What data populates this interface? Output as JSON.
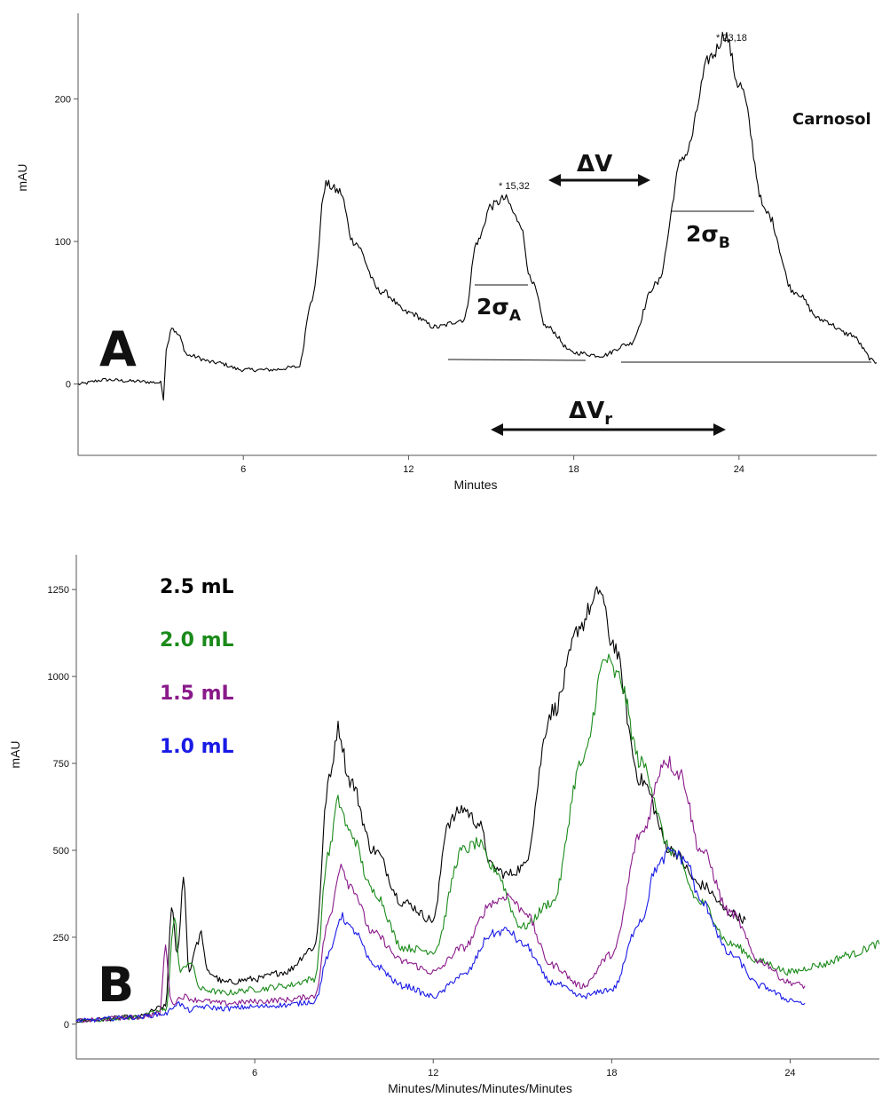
{
  "chart_data": [
    {
      "type": "line",
      "panel_label": "A",
      "xlabel": "Minutes",
      "ylabel": "mAU",
      "xlim": [
        0,
        29
      ],
      "ylim": [
        -50,
        260
      ],
      "xticks": [
        "6",
        "12",
        "18",
        "24"
      ],
      "yticks": [
        "0",
        "100",
        "200"
      ],
      "series": [
        {
          "color": "#000000",
          "x": [
            0,
            1,
            2,
            3,
            3.1,
            3.2,
            3.4,
            3.6,
            4,
            5,
            6,
            7,
            8,
            8.5,
            9,
            9.5,
            10,
            11,
            12,
            13,
            14,
            14.5,
            15,
            15.5,
            16,
            16.5,
            17,
            18,
            19,
            20,
            21,
            22,
            23,
            23.5,
            24,
            25,
            26,
            27,
            28,
            29
          ],
          "y": [
            0,
            3,
            2,
            1,
            -10,
            25,
            40,
            35,
            20,
            15,
            10,
            10,
            12,
            60,
            140,
            135,
            100,
            65,
            50,
            40,
            45,
            100,
            125,
            130,
            115,
            70,
            40,
            22,
            20,
            28,
            70,
            160,
            230,
            245,
            210,
            120,
            65,
            45,
            35,
            15
          ]
        }
      ],
      "annotations": [
        {
          "text": "* 15,32",
          "x": 15.32,
          "y": 150
        },
        {
          "text": "* 23,18",
          "x": 23.18,
          "y": 270
        },
        {
          "text": "Carnosol",
          "x": 27.5,
          "y": 205
        },
        {
          "text": "ΔV",
          "x": 18.5,
          "y": 160
        },
        {
          "text": "2σ",
          "sub": "A",
          "x": 15.5,
          "y": 60
        },
        {
          "text": "2σ",
          "sub": "B",
          "x": 23.0,
          "y": 115
        },
        {
          "text": "ΔV",
          "sub": "r",
          "x": 19.5,
          "y": -20
        }
      ]
    },
    {
      "type": "line",
      "panel_label": "B",
      "xlabel": "Minutes/Minutes/Minutes/Minutes",
      "ylabel": "mAU",
      "xlim": [
        0,
        27
      ],
      "ylim": [
        -100,
        1350
      ],
      "xticks": [
        "6",
        "12",
        "18",
        "24"
      ],
      "yticks": [
        "0",
        "250",
        "500",
        "750",
        "1000",
        "1250"
      ],
      "series": [
        {
          "name": "2.5 mL",
          "color": "#000000",
          "x": [
            0,
            2,
            3,
            3.2,
            3.4,
            3.6,
            3.8,
            4.0,
            4.2,
            4.4,
            5,
            6,
            7,
            8,
            8.5,
            8.8,
            9.2,
            10,
            11,
            12,
            12.5,
            13,
            13.5,
            14,
            14.5,
            15,
            16,
            17,
            17.3,
            17.6,
            18,
            19,
            20,
            21,
            22,
            22.5
          ],
          "y": [
            10,
            20,
            50,
            330,
            200,
            420,
            150,
            220,
            260,
            150,
            120,
            130,
            150,
            220,
            700,
            850,
            700,
            500,
            350,
            300,
            580,
            620,
            580,
            450,
            430,
            450,
            900,
            1150,
            1200,
            1250,
            1100,
            700,
            500,
            400,
            320,
            300
          ]
        },
        {
          "name": "2.0 mL",
          "color": "#1a8a1a",
          "x": [
            0,
            2,
            3,
            3.3,
            3.5,
            3.8,
            4.2,
            5,
            6,
            7,
            8,
            8.5,
            8.8,
            9.2,
            10,
            11,
            12,
            13,
            13.5,
            14,
            15,
            16,
            17,
            17.8,
            18.2,
            19,
            20,
            21,
            22,
            23,
            24,
            25,
            26,
            27
          ],
          "y": [
            10,
            20,
            40,
            300,
            150,
            180,
            100,
            90,
            100,
            110,
            130,
            500,
            640,
            550,
            380,
            220,
            210,
            500,
            520,
            450,
            280,
            350,
            750,
            1050,
            1000,
            750,
            500,
            350,
            230,
            180,
            150,
            170,
            200,
            230
          ]
        },
        {
          "name": "1.5 mL",
          "color": "#8a1a8a",
          "x": [
            0,
            2,
            2.8,
            3.0,
            3.2,
            3.6,
            4,
            5,
            6,
            7,
            8,
            8.5,
            8.9,
            9.2,
            10,
            11,
            12,
            13,
            14,
            14.5,
            15,
            16,
            17,
            18,
            19,
            19.8,
            20.3,
            21,
            22,
            23,
            24,
            24.5
          ],
          "y": [
            10,
            20,
            30,
            220,
            60,
            80,
            70,
            60,
            65,
            70,
            80,
            300,
            460,
            400,
            260,
            180,
            150,
            220,
            350,
            370,
            330,
            170,
            110,
            200,
            550,
            760,
            720,
            500,
            320,
            180,
            120,
            110
          ]
        },
        {
          "name": "1.0 mL",
          "color": "#1a1ae6",
          "x": [
            0,
            2,
            3,
            3.4,
            3.8,
            4.2,
            5,
            6,
            7,
            8,
            8.5,
            8.9,
            9.3,
            10,
            11,
            12,
            13,
            14,
            14.5,
            15,
            16,
            17,
            18,
            19,
            19.5,
            20,
            20.5,
            21,
            22,
            23,
            24,
            24.5
          ],
          "y": [
            10,
            20,
            30,
            60,
            40,
            50,
            45,
            50,
            55,
            65,
            200,
            310,
            270,
            170,
            110,
            80,
            140,
            260,
            270,
            230,
            120,
            80,
            100,
            300,
            450,
            500,
            470,
            350,
            200,
            110,
            70,
            60
          ]
        }
      ]
    }
  ]
}
